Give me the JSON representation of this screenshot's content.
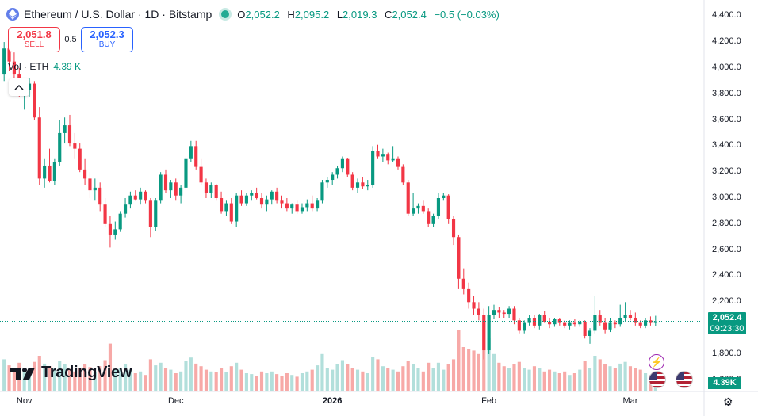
{
  "header": {
    "title": "Ethereum / U.S. Dollar · 1D · Bitstamp",
    "ohlc": [
      {
        "k": "O",
        "v": "2,052.2"
      },
      {
        "k": "H",
        "v": "2,095.2"
      },
      {
        "k": "L",
        "v": "2,019.3"
      },
      {
        "k": "C",
        "v": "2,052.4"
      }
    ],
    "change": "−0.5 (−0.03%)"
  },
  "trade": {
    "sell_price": "2,051.8",
    "sell_label": "SELL",
    "spread": "0.5",
    "buy_price": "2,052.3",
    "buy_label": "BUY"
  },
  "volume_legend": {
    "label": "Vol · ETH",
    "value": "4.39 K"
  },
  "brand": {
    "name": "TradingView"
  },
  "price_tag": {
    "price": "2,052.4",
    "countdown": "09:23:30"
  },
  "volume_tag": "4.39K",
  "colors": {
    "up": "#089981",
    "down": "#f23645",
    "vol_up": "#b2dfdb",
    "vol_down": "#f7a9a7",
    "accent": "#2962ff"
  },
  "icons": [
    "ethereum-icon",
    "collapse-chevron-icon",
    "tradingview-logo-icon",
    "lightning-icon",
    "us-flag-icon",
    "gear-icon"
  ],
  "chart_data": {
    "type": "candlestick",
    "yaxis_ticks": [
      "4,400.0",
      "4,200.0",
      "4,000.0",
      "3,800.0",
      "3,600.0",
      "3,400.0",
      "3,200.0",
      "3,000.0",
      "2,800.0",
      "2,600.0",
      "2,400.0",
      "2,200.0",
      "1,800.0",
      "1,600.0"
    ],
    "ylim": [
      1550,
      4450
    ],
    "xaxis_labels": [
      {
        "label": "Nov",
        "idx": 4
      },
      {
        "label": "Dec",
        "idx": 34
      },
      {
        "label": "2026",
        "idx": 65,
        "bold": true
      },
      {
        "label": "Feb",
        "idx": 96
      },
      {
        "label": "Mar",
        "idx": 124
      }
    ],
    "last_price": 2052.4,
    "candles": [
      [
        3950,
        4200,
        3900,
        4150,
        3600
      ],
      [
        4150,
        4180,
        3980,
        4050,
        2900
      ],
      [
        4050,
        4120,
        3900,
        3950,
        2400
      ],
      [
        3950,
        4000,
        3780,
        3830,
        3200
      ],
      [
        3830,
        3900,
        3680,
        3830,
        2600
      ],
      [
        3830,
        3920,
        3780,
        3880,
        2200
      ],
      [
        3880,
        3900,
        3600,
        3620,
        3300
      ],
      [
        3620,
        3700,
        3100,
        3150,
        4000
      ],
      [
        3150,
        3300,
        3080,
        3250,
        3100
      ],
      [
        3250,
        3380,
        3120,
        3130,
        2800
      ],
      [
        3130,
        3300,
        3100,
        3280,
        2600
      ],
      [
        3280,
        3600,
        3250,
        3500,
        3400
      ],
      [
        3500,
        3620,
        3420,
        3560,
        3000
      ],
      [
        3560,
        3640,
        3400,
        3420,
        2500
      ],
      [
        3420,
        3500,
        3300,
        3380,
        2200
      ],
      [
        3380,
        3420,
        3200,
        3220,
        2600
      ],
      [
        3220,
        3300,
        3100,
        3150,
        3000
      ],
      [
        3150,
        3200,
        3000,
        3060,
        2700
      ],
      [
        3060,
        3150,
        2980,
        3080,
        2200
      ],
      [
        3080,
        3120,
        2900,
        2950,
        2800
      ],
      [
        2950,
        3000,
        2780,
        2800,
        3500
      ],
      [
        2800,
        2860,
        2620,
        2720,
        5400
      ],
      [
        2720,
        2820,
        2680,
        2760,
        2400
      ],
      [
        2760,
        2900,
        2740,
        2880,
        2600
      ],
      [
        2880,
        3000,
        2850,
        2950,
        3000
      ],
      [
        2950,
        3050,
        2920,
        3020,
        2400
      ],
      [
        3020,
        3060,
        2980,
        2990,
        2000
      ],
      [
        2990,
        3080,
        2950,
        3050,
        2200
      ],
      [
        3050,
        3060,
        2960,
        2980,
        1800
      ],
      [
        2980,
        3000,
        2700,
        2780,
        3600
      ],
      [
        2780,
        3000,
        2750,
        2980,
        2900
      ],
      [
        2980,
        3200,
        2960,
        3180,
        3200
      ],
      [
        3180,
        3220,
        3040,
        3060,
        2600
      ],
      [
        3060,
        3140,
        3000,
        3120,
        2400
      ],
      [
        3120,
        3150,
        2980,
        3020,
        2000
      ],
      [
        3020,
        3100,
        2960,
        3080,
        2200
      ],
      [
        3080,
        3320,
        3060,
        3300,
        3400
      ],
      [
        3300,
        3440,
        3280,
        3400,
        3800
      ],
      [
        3400,
        3440,
        3220,
        3240,
        3100
      ],
      [
        3240,
        3300,
        3100,
        3120,
        2800
      ],
      [
        3120,
        3150,
        3000,
        3040,
        2400
      ],
      [
        3040,
        3120,
        3000,
        3100,
        2200
      ],
      [
        3100,
        3110,
        2980,
        3000,
        2100
      ],
      [
        3000,
        3050,
        2880,
        2900,
        2600
      ],
      [
        2900,
        2980,
        2860,
        2960,
        2100
      ],
      [
        2960,
        3000,
        2800,
        2820,
        2800
      ],
      [
        2820,
        3040,
        2780,
        3020,
        3200
      ],
      [
        3020,
        3060,
        2940,
        2960,
        2400
      ],
      [
        2960,
        3040,
        2940,
        3020,
        2000
      ],
      [
        3020,
        3060,
        2980,
        3040,
        1900
      ],
      [
        3040,
        3080,
        2990,
        3000,
        1700
      ],
      [
        3000,
        3040,
        2920,
        2950,
        2200
      ],
      [
        2950,
        3020,
        2900,
        2990,
        2000
      ],
      [
        2990,
        3060,
        2950,
        3050,
        2200
      ],
      [
        3050,
        3080,
        2960,
        2980,
        1900
      ],
      [
        2980,
        3020,
        2920,
        2960,
        1700
      ],
      [
        2960,
        3000,
        2900,
        2920,
        2000
      ],
      [
        2920,
        2960,
        2880,
        2950,
        1800
      ],
      [
        2950,
        2980,
        2880,
        2900,
        1600
      ],
      [
        2900,
        2960,
        2880,
        2930,
        2000
      ],
      [
        2930,
        2990,
        2900,
        2960,
        2200
      ],
      [
        2960,
        3020,
        2900,
        2920,
        2400
      ],
      [
        2920,
        3000,
        2900,
        2980,
        2900
      ],
      [
        2980,
        3140,
        2960,
        3120,
        4200
      ],
      [
        3120,
        3160,
        3080,
        3140,
        2600
      ],
      [
        3140,
        3200,
        3100,
        3180,
        2400
      ],
      [
        3180,
        3250,
        3150,
        3230,
        3000
      ],
      [
        3230,
        3320,
        3200,
        3300,
        3500
      ],
      [
        3300,
        3310,
        3160,
        3180,
        3000
      ],
      [
        3180,
        3200,
        3060,
        3080,
        2600
      ],
      [
        3080,
        3150,
        3040,
        3120,
        2400
      ],
      [
        3120,
        3160,
        3070,
        3090,
        2200
      ],
      [
        3090,
        3140,
        3060,
        3100,
        2000
      ],
      [
        3100,
        3400,
        3080,
        3360,
        3900
      ],
      [
        3360,
        3410,
        3300,
        3320,
        3600
      ],
      [
        3320,
        3380,
        3280,
        3340,
        2800
      ],
      [
        3340,
        3350,
        3260,
        3290,
        2600
      ],
      [
        3290,
        3400,
        3280,
        3300,
        2400
      ],
      [
        3300,
        3320,
        3220,
        3240,
        2200
      ],
      [
        3240,
        3260,
        3100,
        3120,
        2800
      ],
      [
        3120,
        3140,
        2860,
        2880,
        3400
      ],
      [
        2880,
        3040,
        2860,
        2920,
        3000
      ],
      [
        2920,
        2960,
        2880,
        2940,
        2600
      ],
      [
        2940,
        2980,
        2880,
        2900,
        2200
      ],
      [
        2900,
        2920,
        2780,
        2800,
        3200
      ],
      [
        2800,
        2880,
        2780,
        2860,
        2600
      ],
      [
        2860,
        3040,
        2840,
        3000,
        3200
      ],
      [
        3000,
        3040,
        2980,
        3020,
        2400
      ],
      [
        3020,
        3030,
        2800,
        2840,
        3000
      ],
      [
        2840,
        2860,
        2640,
        2700,
        3600
      ],
      [
        2700,
        2720,
        2300,
        2380,
        7000
      ],
      [
        2380,
        2460,
        2260,
        2300,
        5000
      ],
      [
        2300,
        2350,
        2150,
        2200,
        4800
      ],
      [
        2200,
        2250,
        2100,
        2150,
        4600
      ],
      [
        2150,
        2200,
        2060,
        2100,
        4200
      ],
      [
        2100,
        2150,
        1760,
        1830,
        8000
      ],
      [
        1830,
        2170,
        1800,
        2100,
        6000
      ],
      [
        2100,
        2180,
        2070,
        2140,
        4200
      ],
      [
        2140,
        2160,
        2080,
        2120,
        3200
      ],
      [
        2120,
        2140,
        2080,
        2110,
        2800
      ],
      [
        2110,
        2170,
        2080,
        2150,
        2600
      ],
      [
        2150,
        2170,
        2030,
        2060,
        3000
      ],
      [
        2060,
        2080,
        1960,
        1980,
        3300
      ],
      [
        1980,
        2060,
        1960,
        2040,
        2600
      ],
      [
        2040,
        2100,
        2020,
        2080,
        2400
      ],
      [
        2080,
        2100,
        2000,
        2020,
        2800
      ],
      [
        2020,
        2110,
        1990,
        2100,
        2600
      ],
      [
        2100,
        2130,
        2040,
        2050,
        2200
      ],
      [
        2050,
        2080,
        2000,
        2030,
        2400
      ],
      [
        2030,
        2080,
        2010,
        2070,
        2200
      ],
      [
        2070,
        2080,
        2020,
        2040,
        2000
      ],
      [
        2040,
        2060,
        2000,
        2020,
        2200
      ],
      [
        2020,
        2060,
        1990,
        2040,
        1800
      ],
      [
        2040,
        2070,
        2010,
        2030,
        2000
      ],
      [
        2030,
        2060,
        2010,
        2050,
        2400
      ],
      [
        2050,
        2060,
        1920,
        1940,
        3400
      ],
      [
        1940,
        2000,
        1880,
        1980,
        2600
      ],
      [
        1980,
        2250,
        1960,
        2100,
        4000
      ],
      [
        2100,
        2140,
        2020,
        2040,
        3600
      ],
      [
        2040,
        2080,
        1960,
        1990,
        3000
      ],
      [
        1990,
        2080,
        1970,
        2040,
        2800
      ],
      [
        2040,
        2060,
        2000,
        2030,
        2600
      ],
      [
        2030,
        2180,
        2010,
        2080,
        3100
      ],
      [
        2080,
        2200,
        2050,
        2100,
        3300
      ],
      [
        2100,
        2140,
        2060,
        2080,
        2800
      ],
      [
        2080,
        2120,
        2020,
        2040,
        2600
      ],
      [
        2040,
        2060,
        2000,
        2020,
        2400
      ],
      [
        2020,
        2080,
        2000,
        2060,
        2000
      ],
      [
        2060,
        2090,
        2020,
        2040,
        1800
      ],
      [
        2040,
        2095,
        2019,
        2052,
        1000
      ]
    ]
  }
}
